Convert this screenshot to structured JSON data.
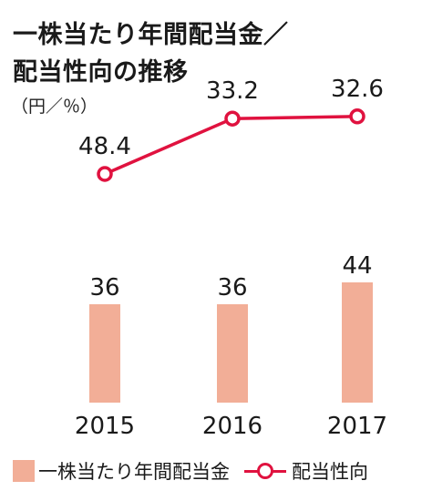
{
  "title_lines": [
    "一株当たり年間配当金／",
    "配当性向の推移"
  ],
  "unit_label": "（円／％）",
  "legend": {
    "bar_label": "一株当たり年間配当金",
    "line_label": "配当性向"
  },
  "colors": {
    "bar": "#f2ae97",
    "line": "#e0123f"
  },
  "chart_data": {
    "type": "bar",
    "categories": [
      "2015",
      "2016",
      "2017"
    ],
    "series": [
      {
        "name": "一株当たり年間配当金",
        "type": "bar",
        "values": [
          36,
          36,
          44
        ]
      },
      {
        "name": "配当性向",
        "type": "line",
        "values": [
          48.4,
          33.2,
          32.6
        ]
      }
    ],
    "bar_labels": [
      "36",
      "36",
      "44"
    ],
    "line_labels": [
      "48.4",
      "33.2",
      "32.6"
    ],
    "unit": "（円／％）",
    "grid": false,
    "legend_position": "bottom"
  }
}
